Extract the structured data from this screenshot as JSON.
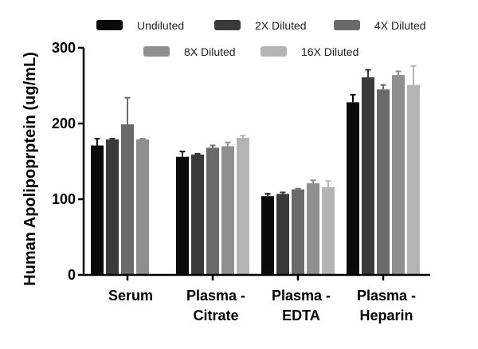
{
  "chart_data": {
    "type": "bar",
    "title": "",
    "xlabel": "",
    "ylabel": "Human Apolipoprptein (ug/mL)",
    "ylim": [
      0,
      300
    ],
    "yticks": [
      0,
      100,
      200,
      300
    ],
    "categories": [
      {
        "line1": "Serum",
        "line2": ""
      },
      {
        "line1": "Plasma -",
        "line2": "Citrate"
      },
      {
        "line1": "Plasma -",
        "line2": "EDTA"
      },
      {
        "line1": "Plasma -",
        "line2": "Heparin"
      }
    ],
    "legend_position": "top",
    "series": [
      {
        "name": "Undiluted",
        "color": "#0a0a0a",
        "values": [
          171,
          156,
          104,
          228
        ],
        "errors": [
          9,
          7,
          3,
          10
        ]
      },
      {
        "name": "2X Diluted",
        "color": "#3a3a3a",
        "values": [
          179,
          159,
          107,
          261
        ],
        "errors": [
          1,
          1,
          2,
          10
        ]
      },
      {
        "name": "4X Diluted",
        "color": "#6a6a6a",
        "values": [
          199,
          168,
          113,
          245
        ],
        "errors": [
          35,
          3,
          1,
          6
        ]
      },
      {
        "name": "8X Diluted",
        "color": "#8f8f8f",
        "values": [
          179,
          170,
          121,
          264
        ],
        "errors": [
          1,
          5,
          4,
          5
        ]
      },
      {
        "name": "16X Diluted",
        "color": "#b4b4b4",
        "values": [
          null,
          181,
          116,
          251
        ],
        "errors": [
          null,
          3,
          8,
          25
        ]
      }
    ]
  }
}
